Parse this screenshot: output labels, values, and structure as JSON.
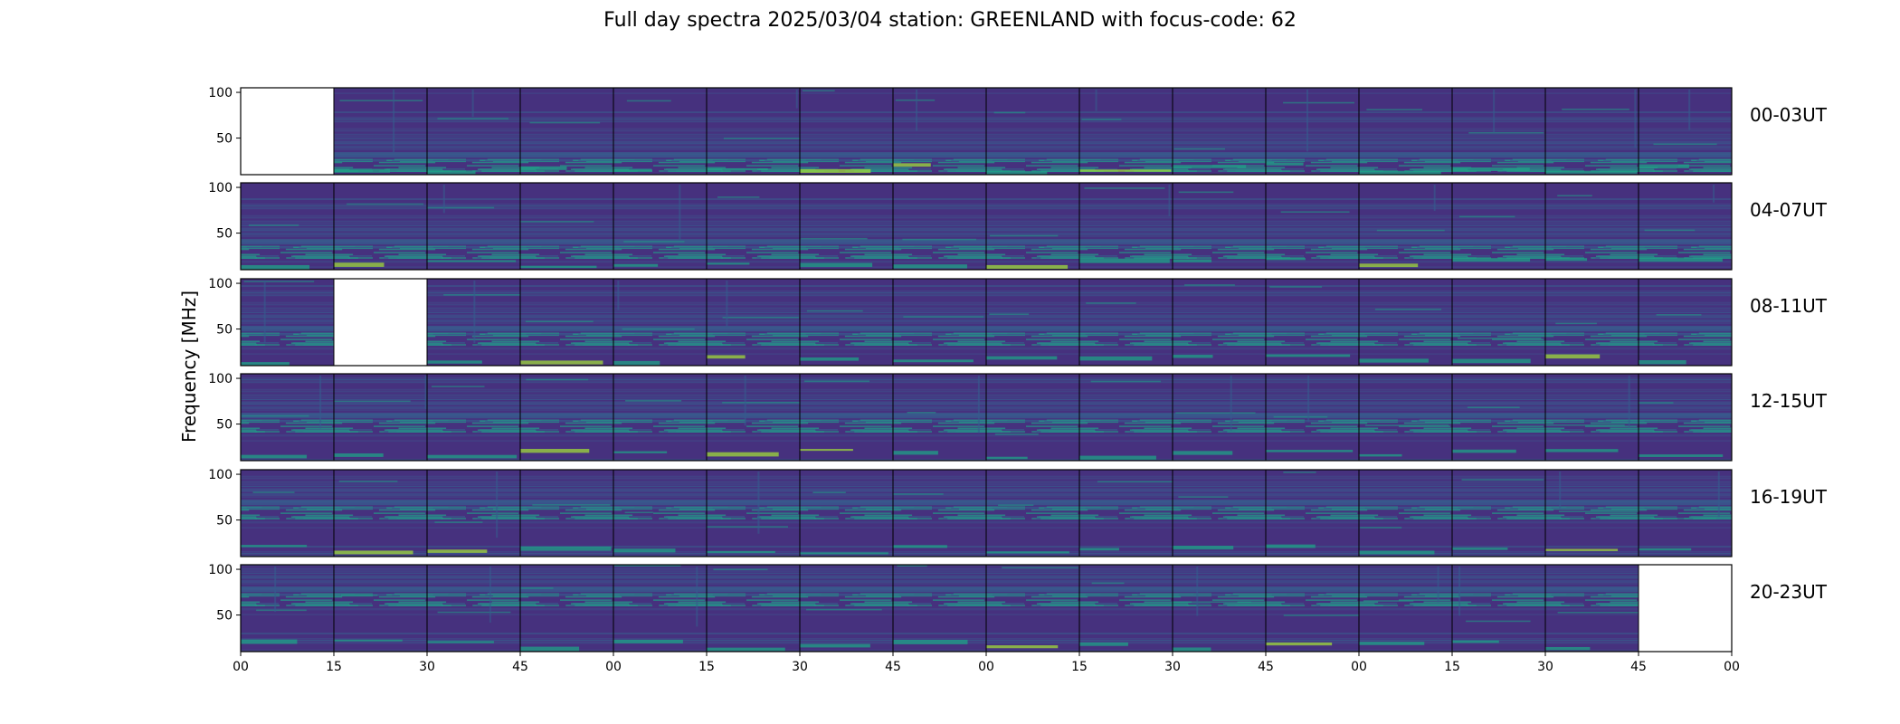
{
  "chart_data": {
    "type": "heatmap",
    "title": "Full day spectra 2025/03/04 station: GREENLAND with focus-code: 62",
    "ylabel": "Frequency [MHz]",
    "xlabel": "",
    "colormap": "viridis",
    "row_labels": [
      "00-03UT",
      "04-07UT",
      "08-11UT",
      "12-15UT",
      "16-19UT",
      "20-23UT"
    ],
    "x_tick_labels": [
      "00",
      "15",
      "30",
      "45",
      "00",
      "15",
      "30",
      "45",
      "00",
      "15",
      "30",
      "45",
      "00",
      "15",
      "30",
      "45",
      "00"
    ],
    "y_tick_labels": [
      "100",
      "50"
    ],
    "y_ticks": [
      100,
      50
    ],
    "ylim": [
      10,
      105
    ],
    "columns_per_row": 16,
    "panel_minutes": 15,
    "missing_panels": [
      {
        "row": 0,
        "col": 0
      },
      {
        "row": 2,
        "col": 1
      },
      {
        "row": 5,
        "col": 15
      }
    ],
    "grid": false
  },
  "colors": {
    "background_dark": "#440154",
    "viridis_low": "#46317e",
    "viridis_mid": "#365c8d",
    "viridis_high": "#1fa187",
    "viridis_peak": "#a0da39"
  }
}
